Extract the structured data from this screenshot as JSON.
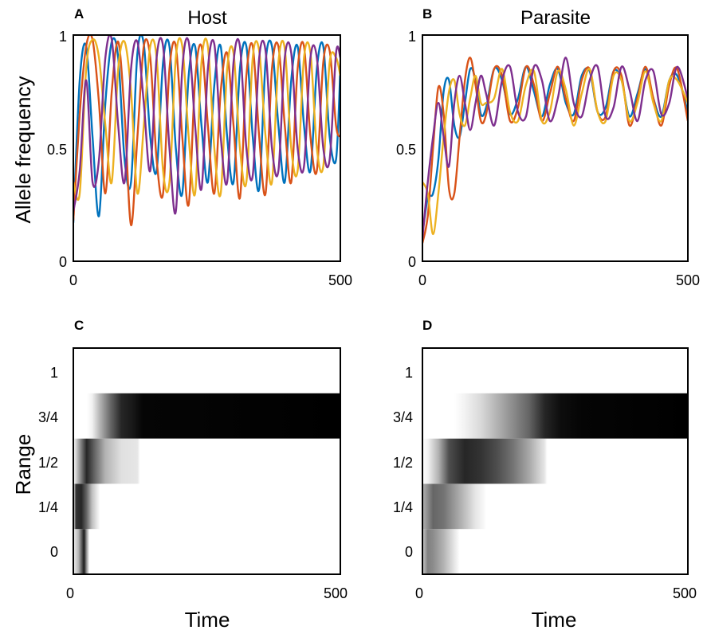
{
  "figure": {
    "ylabel_top": "Allele frequency",
    "ylabel_bottom": "Range",
    "xlabel": "Time"
  },
  "chart_data": [
    {
      "panel": "A",
      "title": "Host",
      "type": "line",
      "xlim": [
        0,
        500
      ],
      "ylim": [
        0,
        1
      ],
      "xticks": [
        "0",
        "500"
      ],
      "yticks": [
        "0",
        "0.5",
        "1"
      ],
      "colors": [
        "#0072BD",
        "#D95319",
        "#EDB120",
        "#7E2F8E"
      ],
      "series": [
        {
          "color": "#0072BD",
          "x": [
            0,
            12,
            24,
            36,
            48,
            60,
            72,
            84,
            96,
            108,
            120,
            132,
            144,
            156,
            168,
            180,
            192,
            204,
            216,
            228,
            240,
            252,
            264,
            276,
            288,
            300,
            312,
            324,
            336,
            348,
            360,
            372,
            384,
            396,
            408,
            420,
            432,
            444,
            456,
            468,
            480,
            492,
            500
          ],
          "y": [
            0.17,
            0.8,
            0.95,
            0.55,
            0.2,
            0.7,
            0.97,
            0.9,
            0.45,
            0.35,
            0.92,
            0.96,
            0.55,
            0.4,
            0.88,
            0.95,
            0.5,
            0.3,
            0.82,
            0.95,
            0.6,
            0.35,
            0.78,
            0.95,
            0.55,
            0.35,
            0.85,
            0.95,
            0.55,
            0.32,
            0.88,
            0.95,
            0.6,
            0.35,
            0.8,
            0.95,
            0.6,
            0.4,
            0.85,
            0.95,
            0.55,
            0.45,
            0.85
          ]
        },
        {
          "color": "#D95319",
          "x": [
            0,
            12,
            24,
            36,
            48,
            60,
            72,
            84,
            96,
            108,
            120,
            132,
            144,
            156,
            168,
            180,
            192,
            204,
            216,
            228,
            240,
            252,
            264,
            276,
            288,
            300,
            312,
            324,
            336,
            348,
            360,
            372,
            384,
            396,
            408,
            420,
            432,
            444,
            456,
            468,
            480,
            492,
            500
          ],
          "y": [
            0.18,
            0.65,
            0.95,
            0.98,
            0.7,
            0.3,
            0.75,
            0.97,
            0.65,
            0.16,
            0.55,
            0.95,
            0.9,
            0.45,
            0.3,
            0.85,
            0.95,
            0.55,
            0.25,
            0.8,
            0.95,
            0.6,
            0.3,
            0.75,
            0.92,
            0.6,
            0.28,
            0.82,
            0.95,
            0.55,
            0.3,
            0.85,
            0.95,
            0.6,
            0.35,
            0.85,
            0.95,
            0.55,
            0.4,
            0.88,
            0.93,
            0.6,
            0.55
          ]
        },
        {
          "color": "#EDB120",
          "x": [
            0,
            12,
            24,
            36,
            48,
            60,
            72,
            84,
            96,
            108,
            120,
            132,
            144,
            156,
            168,
            180,
            192,
            204,
            216,
            228,
            240,
            252,
            264,
            276,
            288,
            300,
            312,
            324,
            336,
            348,
            360,
            372,
            384,
            396,
            408,
            420,
            432,
            444,
            456,
            468,
            480,
            492,
            500
          ],
          "y": [
            0.35,
            0.3,
            0.85,
            0.98,
            0.9,
            0.6,
            0.35,
            0.85,
            0.97,
            0.75,
            0.3,
            0.6,
            0.95,
            0.9,
            0.4,
            0.35,
            0.9,
            0.95,
            0.55,
            0.3,
            0.88,
            0.95,
            0.5,
            0.3,
            0.85,
            0.92,
            0.5,
            0.35,
            0.9,
            0.93,
            0.55,
            0.35,
            0.88,
            0.94,
            0.5,
            0.4,
            0.9,
            0.92,
            0.5,
            0.42,
            0.88,
            0.9,
            0.82
          ]
        },
        {
          "color": "#7E2F8E",
          "x": [
            0,
            12,
            24,
            36,
            48,
            60,
            72,
            84,
            96,
            108,
            120,
            132,
            144,
            156,
            168,
            180,
            192,
            204,
            216,
            228,
            240,
            252,
            264,
            276,
            288,
            300,
            312,
            324,
            336,
            348,
            360,
            372,
            384,
            396,
            408,
            420,
            432,
            444,
            456,
            468,
            480,
            492,
            500
          ],
          "y": [
            0.22,
            0.4,
            0.8,
            0.35,
            0.45,
            0.9,
            0.98,
            0.6,
            0.35,
            0.85,
            0.97,
            0.7,
            0.4,
            0.9,
            0.95,
            0.5,
            0.22,
            0.85,
            0.97,
            0.6,
            0.32,
            0.85,
            0.96,
            0.55,
            0.35,
            0.88,
            0.95,
            0.5,
            0.38,
            0.9,
            0.93,
            0.5,
            0.4,
            0.9,
            0.92,
            0.5,
            0.42,
            0.9,
            0.9,
            0.5,
            0.45,
            0.92,
            0.9
          ]
        }
      ]
    },
    {
      "panel": "B",
      "title": "Parasite",
      "type": "line",
      "xlim": [
        0,
        500
      ],
      "ylim": [
        0,
        1
      ],
      "xticks": [
        "0",
        "500"
      ],
      "yticks": [
        "0",
        "0.5",
        "1"
      ],
      "colors": [
        "#0072BD",
        "#D95319",
        "#EDB120",
        "#7E2F8E"
      ],
      "series": [
        {
          "color": "#0072BD",
          "x": [
            0,
            10,
            20,
            30,
            40,
            50,
            60,
            70,
            80,
            90,
            100,
            110,
            120,
            135,
            150,
            165,
            180,
            195,
            210,
            225,
            240,
            255,
            270,
            285,
            300,
            315,
            330,
            345,
            360,
            375,
            390,
            405,
            420,
            435,
            450,
            465,
            480,
            500
          ],
          "y": [
            0.12,
            0.28,
            0.3,
            0.45,
            0.75,
            0.8,
            0.6,
            0.55,
            0.7,
            0.85,
            0.8,
            0.65,
            0.68,
            0.85,
            0.8,
            0.65,
            0.72,
            0.86,
            0.75,
            0.64,
            0.78,
            0.85,
            0.7,
            0.65,
            0.82,
            0.84,
            0.66,
            0.68,
            0.84,
            0.8,
            0.64,
            0.74,
            0.85,
            0.72,
            0.64,
            0.8,
            0.82,
            0.66
          ]
        },
        {
          "color": "#D95319",
          "x": [
            0,
            10,
            20,
            30,
            40,
            50,
            60,
            70,
            80,
            90,
            100,
            110,
            120,
            135,
            150,
            165,
            180,
            195,
            210,
            225,
            240,
            255,
            270,
            285,
            300,
            315,
            330,
            345,
            360,
            375,
            390,
            405,
            420,
            435,
            450,
            465,
            480,
            500
          ],
          "y": [
            0.08,
            0.2,
            0.5,
            0.77,
            0.65,
            0.32,
            0.3,
            0.55,
            0.8,
            0.9,
            0.78,
            0.62,
            0.65,
            0.85,
            0.82,
            0.62,
            0.68,
            0.86,
            0.78,
            0.62,
            0.74,
            0.86,
            0.72,
            0.62,
            0.8,
            0.85,
            0.66,
            0.64,
            0.84,
            0.82,
            0.6,
            0.72,
            0.86,
            0.72,
            0.6,
            0.78,
            0.85,
            0.62
          ]
        },
        {
          "color": "#EDB120",
          "x": [
            0,
            10,
            20,
            30,
            40,
            50,
            60,
            70,
            80,
            90,
            100,
            110,
            120,
            135,
            150,
            165,
            180,
            195,
            210,
            225,
            240,
            255,
            270,
            285,
            300,
            315,
            330,
            345,
            360,
            375,
            390,
            405,
            420,
            435,
            450,
            465,
            480,
            500
          ],
          "y": [
            0.35,
            0.3,
            0.12,
            0.3,
            0.55,
            0.75,
            0.8,
            0.65,
            0.6,
            0.72,
            0.82,
            0.7,
            0.7,
            0.72,
            0.85,
            0.66,
            0.62,
            0.78,
            0.84,
            0.62,
            0.66,
            0.84,
            0.76,
            0.6,
            0.74,
            0.85,
            0.66,
            0.62,
            0.82,
            0.8,
            0.62,
            0.7,
            0.84,
            0.7,
            0.62,
            0.8,
            0.8,
            0.7
          ]
        },
        {
          "color": "#7E2F8E",
          "x": [
            0,
            10,
            20,
            30,
            40,
            50,
            60,
            70,
            80,
            90,
            100,
            110,
            120,
            135,
            150,
            165,
            180,
            195,
            210,
            225,
            240,
            255,
            270,
            285,
            300,
            315,
            330,
            345,
            360,
            375,
            390,
            405,
            420,
            435,
            450,
            465,
            480,
            500
          ],
          "y": [
            0.1,
            0.35,
            0.55,
            0.7,
            0.55,
            0.42,
            0.7,
            0.82,
            0.7,
            0.58,
            0.7,
            0.82,
            0.74,
            0.6,
            0.8,
            0.86,
            0.66,
            0.64,
            0.86,
            0.8,
            0.62,
            0.72,
            0.9,
            0.7,
            0.64,
            0.8,
            0.86,
            0.64,
            0.68,
            0.86,
            0.76,
            0.62,
            0.8,
            0.84,
            0.65,
            0.7,
            0.86,
            0.72
          ]
        }
      ]
    },
    {
      "panel": "C",
      "type": "heatmap",
      "xlim": [
        0,
        500
      ],
      "xticks": [
        "0",
        "500"
      ],
      "yticks": [
        "0",
        "1/4",
        "1/2",
        "3/4",
        "1"
      ],
      "rows": [
        "0",
        "1/4",
        "1/2",
        "3/4"
      ],
      "note_values": "intensity 0 (white) to 1 (black)",
      "cells": [
        {
          "row": "0",
          "x": [
            0,
            10,
            20,
            25,
            30
          ],
          "v": [
            0.05,
            0.3,
            0.9,
            0.4,
            0
          ]
        },
        {
          "row": "1/4",
          "x": [
            0,
            5,
            15,
            25,
            35,
            45,
            50
          ],
          "v": [
            0,
            0.8,
            0.85,
            0.6,
            0.25,
            0.08,
            0
          ]
        },
        {
          "row": "1/2",
          "x": [
            0,
            10,
            25,
            40,
            60,
            90,
            120,
            125
          ],
          "v": [
            0,
            0.35,
            0.85,
            0.6,
            0.3,
            0.12,
            0.1,
            0
          ]
        },
        {
          "row": "3/4",
          "x": [
            0,
            25,
            35,
            50,
            70,
            90,
            110,
            130,
            500
          ],
          "v": [
            0,
            0,
            0.05,
            0.3,
            0.6,
            0.85,
            0.9,
            0.98,
            1
          ]
        }
      ]
    },
    {
      "panel": "D",
      "type": "heatmap",
      "xlim": [
        0,
        500
      ],
      "xticks": [
        "0",
        "500"
      ],
      "yticks": [
        "0",
        "1/4",
        "1/2",
        "3/4",
        "1"
      ],
      "rows": [
        "0",
        "1/4",
        "1/2",
        "3/4"
      ],
      "note_values": "intensity 0 (white) to 1 (black)",
      "cells": [
        {
          "row": "0",
          "x": [
            0,
            10,
            20,
            40,
            55,
            65,
            70
          ],
          "v": [
            0.2,
            0.5,
            0.45,
            0.3,
            0.15,
            0.05,
            0
          ]
        },
        {
          "row": "1/4",
          "x": [
            0,
            20,
            40,
            60,
            80,
            100,
            115,
            120
          ],
          "v": [
            0.3,
            0.6,
            0.55,
            0.4,
            0.25,
            0.1,
            0.03,
            0
          ]
        },
        {
          "row": "1/2",
          "x": [
            0,
            10,
            30,
            50,
            80,
            110,
            140,
            170,
            200,
            230,
            235
          ],
          "v": [
            0,
            0.05,
            0.3,
            0.7,
            0.85,
            0.8,
            0.7,
            0.55,
            0.35,
            0.1,
            0
          ]
        },
        {
          "row": "3/4",
          "x": [
            0,
            60,
            80,
            110,
            140,
            170,
            200,
            230,
            260,
            300,
            500
          ],
          "v": [
            0,
            0,
            0.05,
            0.15,
            0.3,
            0.45,
            0.6,
            0.85,
            0.95,
            0.98,
            1
          ]
        }
      ]
    }
  ]
}
